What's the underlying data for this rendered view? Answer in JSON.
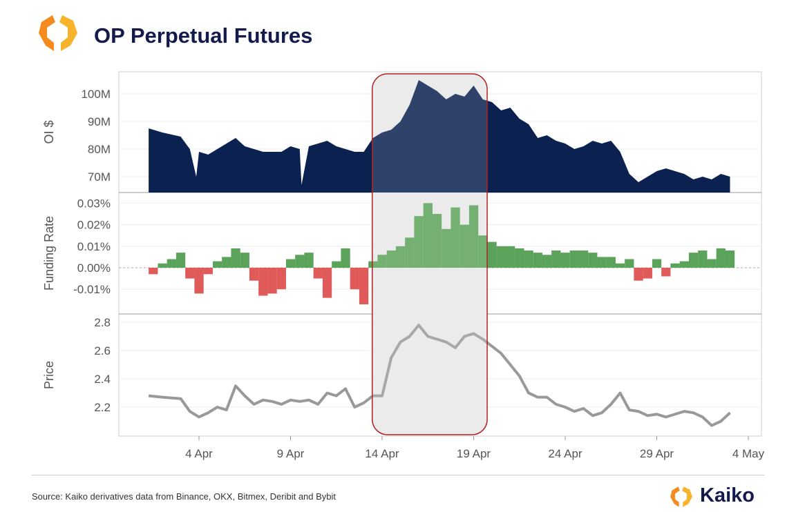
{
  "header": {
    "title": "OP Perpetual Futures"
  },
  "footer": {
    "source": "Source: Kaiko derivatives data from Binance, OKX, Bitmex, Deribit and Bybit",
    "brand": "Kaiko"
  },
  "colors": {
    "oi": "#0b2150",
    "funding_pos": "#5ba35a",
    "funding_neg": "#e05a5a",
    "price": "#999999",
    "highlight_stroke": "#b22222",
    "highlight_fill": "#e8e8e8",
    "logo": "#f7a41d"
  },
  "chart_data": [
    {
      "type": "area",
      "name": "oi",
      "ylabel": "OI $",
      "ylim": [
        64,
        107
      ],
      "yticks": [
        70,
        80,
        90,
        100
      ],
      "ytick_labels": [
        "70M",
        "80M",
        "90M",
        "100M"
      ],
      "x": [
        1.25,
        2,
        3,
        3.5,
        3.85,
        4,
        4.5,
        5,
        5.5,
        6,
        6.5,
        7,
        7.5,
        8,
        8.5,
        9,
        9.5,
        9.6,
        10,
        10.5,
        11,
        11.5,
        12,
        12.5,
        13,
        13.5,
        14,
        14.5,
        15,
        15.5,
        16,
        16.5,
        17,
        17.5,
        18,
        18.5,
        19,
        19.5,
        20,
        20.5,
        21,
        21.5,
        22,
        22.5,
        23,
        23.5,
        24,
        24.5,
        25,
        25.5,
        26,
        26.5,
        27,
        27.5,
        28,
        28.5,
        29,
        29.5,
        30,
        30.5,
        31,
        31.5,
        32,
        32.5,
        33
      ],
      "values": [
        87.5,
        86,
        84.5,
        80,
        70,
        79,
        78,
        80,
        82,
        84,
        81,
        80,
        79,
        79,
        79,
        81,
        80,
        67,
        81,
        82,
        83,
        81,
        80,
        79,
        79,
        84,
        86,
        87,
        90,
        96,
        105,
        103,
        101,
        98,
        100,
        99,
        103,
        98,
        97,
        94,
        95,
        91,
        89,
        84,
        85,
        83,
        82,
        80,
        81,
        83,
        82,
        83,
        79,
        71,
        68,
        70,
        72,
        73,
        72,
        71,
        69,
        70,
        69,
        71,
        70
      ]
    },
    {
      "type": "bar",
      "name": "funding",
      "ylabel": "Funding Rate",
      "ylim": [
        -0.019,
        0.0315
      ],
      "yticks": [
        -0.01,
        0,
        0.01,
        0.02,
        0.03
      ],
      "ytick_labels": [
        "-0.01%",
        "0.00%",
        "0.01%",
        "0.02%",
        "0.03%"
      ],
      "x": [
        1.5,
        2,
        2.5,
        3,
        3.5,
        4,
        4.5,
        5,
        5.5,
        6,
        6.5,
        7,
        7.5,
        8,
        8.5,
        9,
        9.5,
        10,
        10.5,
        11,
        11.5,
        12,
        12.5,
        13,
        13.5,
        14,
        14.5,
        15,
        15.5,
        16,
        16.5,
        17,
        17.5,
        18,
        18.5,
        19,
        19.5,
        20,
        20.5,
        21,
        21.5,
        22,
        22.5,
        23,
        23.5,
        24,
        24.5,
        25,
        25.5,
        26,
        26.5,
        27,
        27.5,
        28,
        28.5,
        29,
        29.5,
        30,
        30.5,
        31,
        31.5,
        32,
        32.5,
        33
      ],
      "values": [
        -0.003,
        0.002,
        0.004,
        0.007,
        -0.005,
        -0.012,
        -0.003,
        0.003,
        0.005,
        0.009,
        0.007,
        -0.006,
        -0.013,
        -0.012,
        -0.01,
        0.004,
        0.006,
        0.007,
        -0.005,
        -0.014,
        0.003,
        0.009,
        -0.01,
        -0.017,
        0.003,
        0.006,
        0.008,
        0.01,
        0.014,
        0.024,
        0.03,
        0.025,
        0.018,
        0.028,
        0.02,
        0.029,
        0.015,
        0.012,
        0.01,
        0.01,
        0.009,
        0.008,
        0.007,
        0.006,
        0.008,
        0.007,
        0.008,
        0.008,
        0.007,
        0.005,
        0.005,
        0.002,
        0.004,
        -0.006,
        -0.005,
        0.004,
        -0.004,
        0.002,
        0.003,
        0.007,
        0.008,
        0.004,
        0.009,
        0.008
      ]
    },
    {
      "type": "line",
      "name": "price",
      "ylabel": "Price",
      "ylim": [
        2.0,
        2.83
      ],
      "yticks": [
        2.2,
        2.4,
        2.6,
        2.8
      ],
      "ytick_labels": [
        "2.2",
        "2.4",
        "2.6",
        "2.8"
      ],
      "x": [
        1.25,
        2,
        3,
        3.5,
        4,
        4.5,
        5,
        5.5,
        6,
        6.5,
        7,
        7.5,
        8,
        8.5,
        9,
        9.5,
        10,
        10.5,
        11,
        11.5,
        12,
        12.5,
        13,
        13.5,
        14,
        14.5,
        15,
        15.5,
        16,
        16.5,
        17,
        17.5,
        18,
        18.5,
        19,
        19.5,
        20,
        20.5,
        21,
        21.5,
        22,
        22.5,
        23,
        23.5,
        24,
        24.5,
        25,
        25.5,
        26,
        26.5,
        27,
        27.5,
        28,
        28.5,
        29,
        29.5,
        30,
        30.5,
        31,
        31.5,
        32,
        32.5,
        33
      ],
      "values": [
        2.28,
        2.27,
        2.26,
        2.17,
        2.13,
        2.16,
        2.2,
        2.18,
        2.35,
        2.28,
        2.22,
        2.25,
        2.24,
        2.22,
        2.25,
        2.24,
        2.25,
        2.22,
        2.3,
        2.28,
        2.33,
        2.2,
        2.23,
        2.28,
        2.28,
        2.55,
        2.66,
        2.7,
        2.78,
        2.7,
        2.68,
        2.66,
        2.62,
        2.7,
        2.72,
        2.68,
        2.63,
        2.58,
        2.5,
        2.42,
        2.3,
        2.27,
        2.27,
        2.22,
        2.2,
        2.17,
        2.19,
        2.14,
        2.16,
        2.22,
        2.3,
        2.18,
        2.17,
        2.14,
        2.15,
        2.13,
        2.15,
        2.17,
        2.16,
        2.13,
        2.07,
        2.1,
        2.16
      ]
    }
  ],
  "xaxis": {
    "ticks": [
      4,
      9,
      14,
      19,
      24,
      29,
      34
    ],
    "labels": [
      "4 Apr",
      "9 Apr",
      "14 Apr",
      "19 Apr",
      "24 Apr",
      "29 Apr",
      "4 May"
    ]
  },
  "highlight": {
    "from": 13.5,
    "to": 19.7
  }
}
